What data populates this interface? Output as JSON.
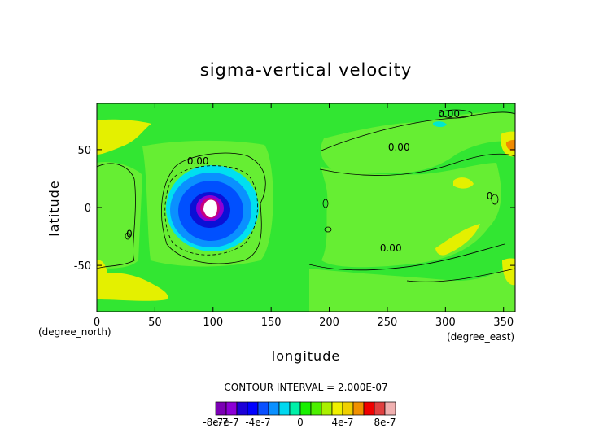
{
  "chart_data": {
    "type": "heatmap",
    "title": "sigma-vertical velocity",
    "xlabel": "longitude",
    "ylabel": "latitude",
    "x_unit": "(degree_east)",
    "y_unit": "(degree_north)",
    "xlim": [
      0,
      360
    ],
    "ylim": [
      -90,
      90
    ],
    "xticks": [
      0,
      50,
      100,
      150,
      200,
      250,
      300,
      350
    ],
    "yticks": [
      -50,
      0,
      50
    ],
    "contour_interval_label": "CONTOUR INTERVAL = 2.000E-07",
    "contour_labels": [
      {
        "text": "0.00",
        "lon": 87,
        "lat": 40
      },
      {
        "text": "0.00",
        "lon": 303,
        "lat": 81
      },
      {
        "text": "0.00",
        "lon": 260,
        "lat": 52
      },
      {
        "text": "0.00",
        "lon": 253,
        "lat": -35
      },
      {
        "text": "0",
        "lon": 28,
        "lat": -23
      },
      {
        "text": "0",
        "lon": 338,
        "lat": 10
      }
    ],
    "colorbar": {
      "levels": [
        -8e-07,
        -7e-07,
        -6e-07,
        -5e-07,
        -4e-07,
        -3e-07,
        -2e-07,
        -1e-07,
        0,
        1e-07,
        2e-07,
        3e-07,
        4e-07,
        5e-07,
        6e-07,
        7e-07,
        8e-07,
        9e-07
      ],
      "colors": [
        "#7b00b4",
        "#8c00d6",
        "#1c00d8",
        "#0000ff",
        "#0a50ff",
        "#0a90ff",
        "#00d8f0",
        "#00f0a8",
        "#18f000",
        "#4cf000",
        "#aaf000",
        "#f0f000",
        "#f0d000",
        "#f09000",
        "#f00000",
        "#e04040",
        "#f0b0b0"
      ],
      "tick_labels": [
        {
          "text": "-8e-7",
          "value": -8e-07
        },
        {
          "text": "-7e-7",
          "value": -7e-07
        },
        {
          "text": "-4e-7",
          "value": -4e-07
        },
        {
          "text": "0",
          "value": 0
        },
        {
          "text": "4e-7",
          "value": 4e-07
        },
        {
          "text": "8e-7",
          "value": 8e-07
        }
      ]
    },
    "regions": [
      {
        "name": "background",
        "value": 5e-08
      },
      {
        "name": "descent-center",
        "lon": 97,
        "lat": 0,
        "value": -8e-07
      }
    ],
    "grid": false
  }
}
